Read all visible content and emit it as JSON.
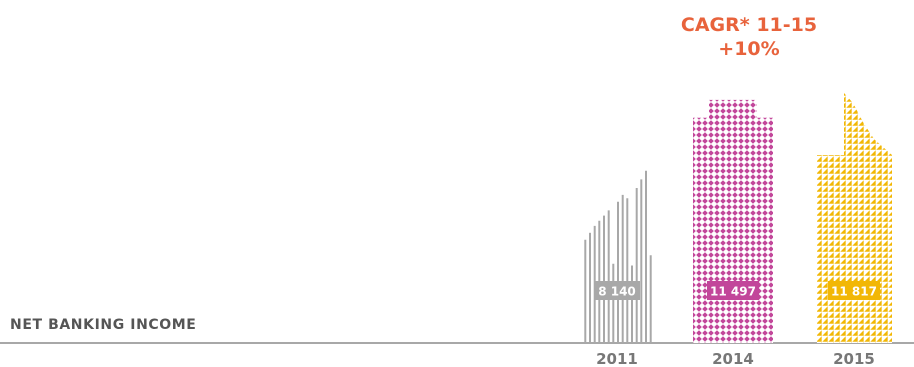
{
  "chart_data": {
    "type": "bar",
    "title": "NET BANKING INCOME",
    "categories": [
      "2011",
      "2014",
      "2015"
    ],
    "values": [
      8140,
      11497,
      11817
    ],
    "value_labels": [
      "8 140",
      "11 497",
      "11 817"
    ],
    "annotation": {
      "line1": "CAGR* 11-15",
      "line2": "+10%"
    },
    "colors": {
      "bar_2011": "#a8a8a8",
      "bar_2014": "#c2469a",
      "bar_2015": "#f2b705",
      "annotation": "#e8633c",
      "axis": "#8c8c8c",
      "title": "#555555",
      "ticks": "#777777"
    },
    "legend": "none",
    "grid": false
  }
}
